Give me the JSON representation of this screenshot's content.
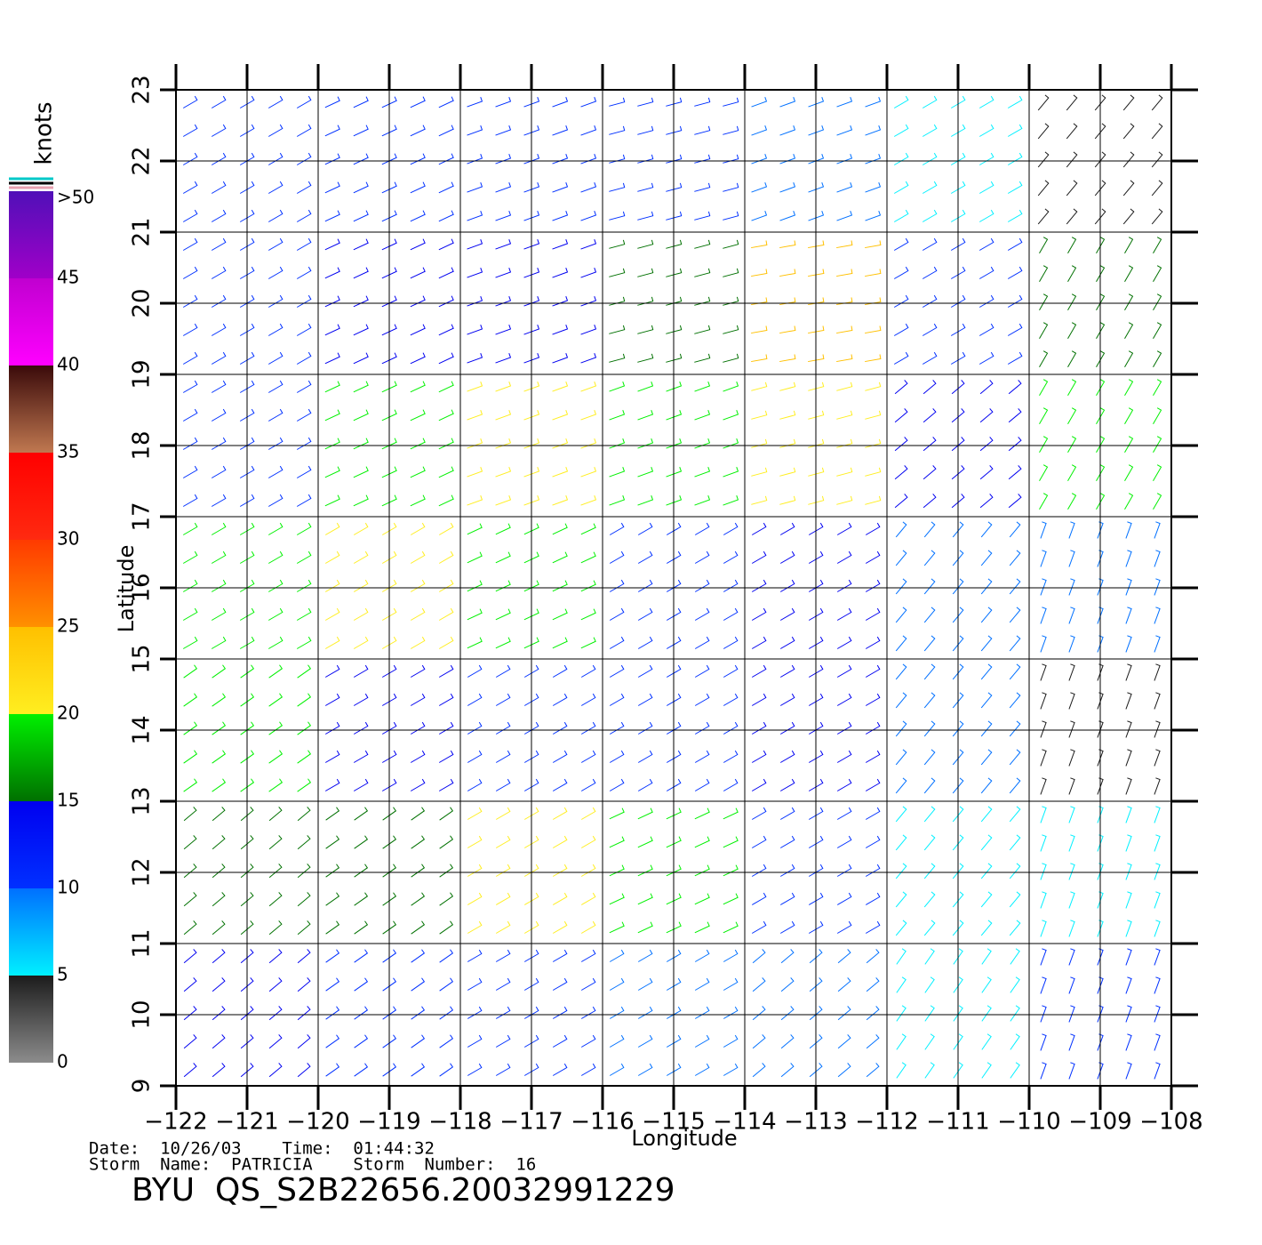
{
  "chart_data": {
    "type": "wind-barbs",
    "x_label": "Longitude",
    "y_label": "Latitude",
    "xlim": [
      -122,
      -108
    ],
    "ylim": [
      9,
      23
    ],
    "xticks": [
      {
        "value": -122,
        "label": "−122"
      },
      {
        "value": -121,
        "label": "−121"
      },
      {
        "value": -120,
        "label": "−120"
      },
      {
        "value": -119,
        "label": "−119"
      },
      {
        "value": -118,
        "label": "−118"
      },
      {
        "value": -117,
        "label": "−117"
      },
      {
        "value": -116,
        "label": "−116"
      },
      {
        "value": -115,
        "label": "−115"
      },
      {
        "value": -114,
        "label": "−114"
      },
      {
        "value": -113,
        "label": "−113"
      },
      {
        "value": -112,
        "label": "−112"
      },
      {
        "value": -111,
        "label": "−111"
      },
      {
        "value": -110,
        "label": "−110"
      },
      {
        "value": -109,
        "label": "−109"
      },
      {
        "value": -108,
        "label": "−108"
      }
    ],
    "yticks": [
      9,
      10,
      11,
      12,
      13,
      14,
      15,
      16,
      17,
      18,
      19,
      20,
      21,
      22,
      23
    ],
    "grid": true,
    "wind": {
      "speed": [
        [
          11,
          11,
          12,
          10,
          8,
          6,
          4
        ],
        [
          11,
          13,
          13,
          15,
          24,
          12,
          16
        ],
        [
          12,
          18,
          20,
          18,
          22,
          14,
          18
        ],
        [
          18,
          20,
          19,
          12,
          13,
          8,
          8
        ],
        [
          19,
          14,
          11,
          12,
          14,
          8,
          4
        ],
        [
          16,
          16,
          20,
          18,
          10,
          7,
          6
        ],
        [
          14,
          12,
          10,
          8,
          8,
          7,
          10
        ]
      ],
      "direction": [
        [
          60,
          65,
          70,
          75,
          70,
          60,
          40
        ],
        [
          60,
          65,
          70,
          75,
          80,
          60,
          30
        ],
        [
          60,
          65,
          70,
          70,
          75,
          50,
          30
        ],
        [
          60,
          60,
          65,
          60,
          60,
          40,
          20
        ],
        [
          55,
          60,
          60,
          60,
          60,
          40,
          20
        ],
        [
          50,
          55,
          60,
          65,
          60,
          40,
          20
        ],
        [
          50,
          55,
          60,
          60,
          50,
          35,
          20
        ]
      ]
    },
    "colorbar": {
      "label": "knots",
      "ticks": [
        0,
        5,
        10,
        15,
        20,
        25,
        30,
        35,
        40,
        45,
        {
          "value": 50,
          "label": ">50"
        }
      ],
      "colors": [
        [
          "#8c8c8c",
          "#1c1c1c"
        ],
        [
          "#00f0ff",
          "#0070ff"
        ],
        [
          "#0030ff",
          "#0000f0"
        ],
        [
          "#007000",
          "#00f000"
        ],
        [
          "#ffee20",
          "#ffc000"
        ],
        [
          "#ff9000",
          "#ff3a00"
        ],
        [
          "#ff2a10",
          "#ff0000"
        ],
        [
          "#c07850",
          "#3a0a0a"
        ],
        [
          "#ff00ff",
          "#c000d0"
        ],
        [
          "#a000c8",
          "#5010b8"
        ]
      ]
    },
    "footer": {
      "line1": "Date:  10/26/03    Time:  01:44:32",
      "line2": "Storm  Name:  PATRICIA    Storm  Number:  16",
      "title": "BYU  QS_S2B22656.20032991229"
    }
  }
}
